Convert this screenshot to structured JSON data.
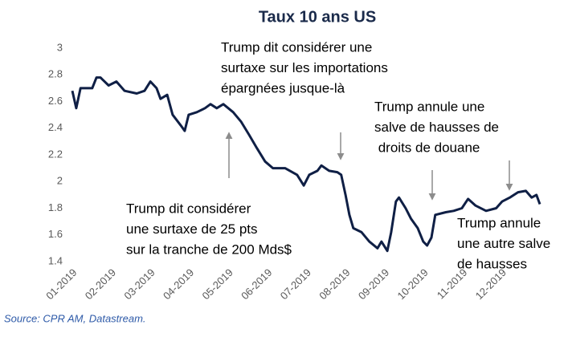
{
  "chart_data": {
    "type": "line",
    "title": "Taux 10 ans US",
    "x": [
      1.0,
      1.1,
      1.21,
      1.51,
      1.62,
      1.72,
      1.93,
      2.13,
      2.34,
      2.65,
      2.85,
      3.0,
      3.16,
      3.26,
      3.43,
      3.57,
      3.78,
      3.88,
      3.98,
      4.19,
      4.4,
      4.54,
      4.7,
      4.87,
      5.12,
      5.32,
      5.53,
      5.73,
      5.94,
      6.14,
      6.45,
      6.76,
      6.93,
      7.07,
      7.28,
      7.38,
      7.58,
      7.79,
      7.89,
      8.0,
      8.1,
      8.2,
      8.41,
      8.61,
      8.82,
      8.92,
      9.07,
      9.17,
      9.29,
      9.37,
      9.54,
      9.68,
      9.85,
      9.99,
      10.09,
      10.2,
      10.3,
      10.57,
      10.77,
      10.98,
      11.14,
      11.33,
      11.6,
      11.86,
      12.01,
      12.21,
      12.42,
      12.62,
      12.77,
      12.89,
      12.98
    ],
    "series": [
      {
        "color": "#0f1f45",
        "values": [
          2.68,
          2.55,
          2.7,
          2.7,
          2.78,
          2.78,
          2.72,
          2.75,
          2.68,
          2.66,
          2.68,
          2.75,
          2.7,
          2.62,
          2.65,
          2.5,
          2.42,
          2.38,
          2.5,
          2.52,
          2.55,
          2.58,
          2.55,
          2.58,
          2.52,
          2.45,
          2.35,
          2.25,
          2.15,
          2.1,
          2.1,
          2.05,
          1.97,
          2.05,
          2.08,
          2.12,
          2.08,
          2.07,
          2.05,
          1.9,
          1.75,
          1.65,
          1.62,
          1.55,
          1.5,
          1.55,
          1.48,
          1.62,
          1.85,
          1.88,
          1.8,
          1.72,
          1.65,
          1.55,
          1.52,
          1.58,
          1.75,
          1.77,
          1.78,
          1.8,
          1.87,
          1.82,
          1.78,
          1.8,
          1.85,
          1.88,
          1.92,
          1.93,
          1.88,
          1.9,
          1.83
        ]
      }
    ],
    "xlim": [
      1,
      13
    ],
    "xticks": [
      {
        "value": 1,
        "label": "01-2019"
      },
      {
        "value": 2,
        "label": "02-2019"
      },
      {
        "value": 3,
        "label": "03-2019"
      },
      {
        "value": 4,
        "label": "04-2019"
      },
      {
        "value": 5,
        "label": "05-2019"
      },
      {
        "value": 6,
        "label": "06-2019"
      },
      {
        "value": 7,
        "label": "07-2019"
      },
      {
        "value": 8,
        "label": "08-2019"
      },
      {
        "value": 9,
        "label": "09-2019"
      },
      {
        "value": 10,
        "label": "10-2019"
      },
      {
        "value": 11,
        "label": "11-2019"
      },
      {
        "value": 12,
        "label": "12-2019"
      }
    ],
    "ylim": [
      1.4,
      3
    ],
    "yticks": [
      1.4,
      1.6,
      1.8,
      2,
      2.2,
      2.4,
      2.6,
      2.8,
      3
    ],
    "grid": false,
    "annotations": [
      {
        "lines": [
          "Trump dit considérer une",
          "surtaxe sur les importations",
          "épargnées jusque-là"
        ]
      },
      {
        "lines": [
          "Trump dit considérer",
          "une surtaxe de 25 pts",
          "sur la tranche de 200 Mds$"
        ]
      },
      {
        "lines": [
          "Trump annule une",
          "salve de hausses de",
          " droits de douane"
        ]
      },
      {
        "lines": [
          "Trump annule",
          "une autre salve",
          "de hausses"
        ]
      }
    ],
    "source": "Source: CPR AM, Datastream."
  }
}
